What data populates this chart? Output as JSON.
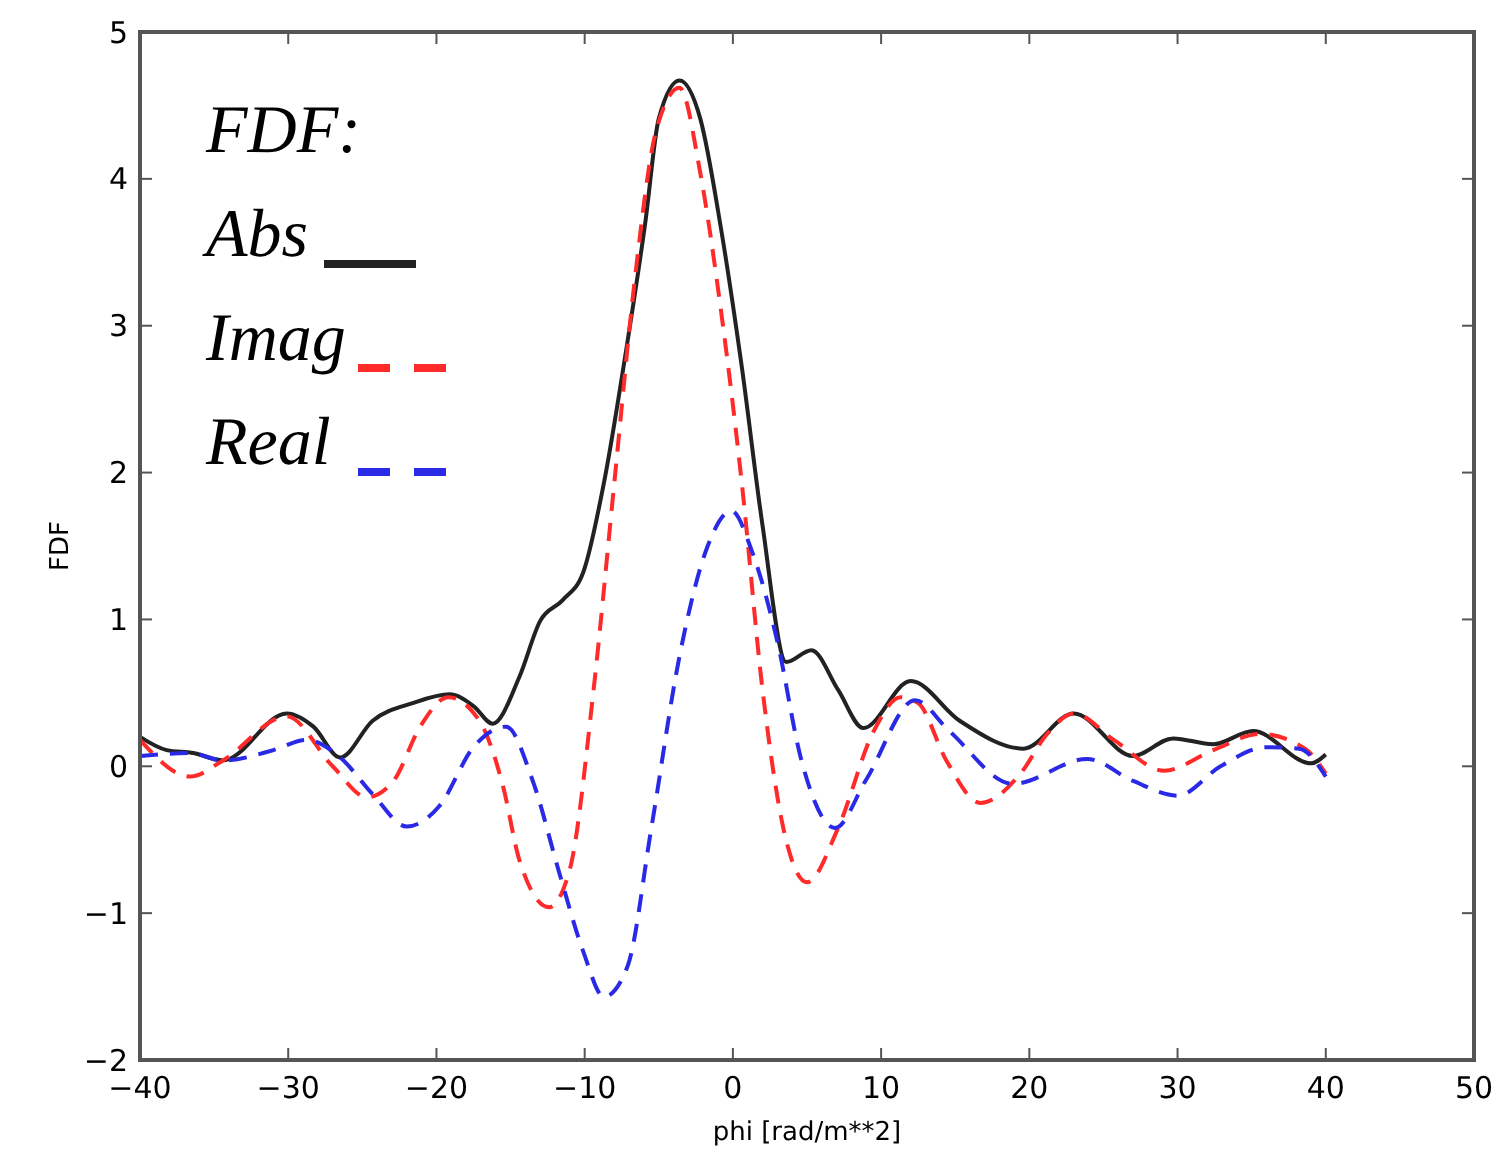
{
  "chart_data": {
    "type": "line",
    "xlabel": "phi [rad/m**2]",
    "ylabel": "FDF",
    "legend_title": "FDF:",
    "legend": "top left",
    "grid": false,
    "xlim": [
      -40,
      50
    ],
    "xticks": [
      -40,
      -30,
      -20,
      -10,
      0,
      10,
      20,
      30,
      40,
      50
    ],
    "ylim": [
      -2,
      5
    ],
    "yticks": [
      -2,
      -1,
      0,
      1,
      2,
      3,
      4,
      5
    ],
    "series": [
      {
        "name": "Abs",
        "color": "#222222",
        "line_style": "solid",
        "x": [
          -40,
          -38.2,
          -36.4,
          -34.4,
          -30.1,
          -28.3,
          -26.5,
          -24.3,
          -21.6,
          -19.1,
          -17.5,
          -16.2,
          -14.4,
          -13.0,
          -11.5,
          -10.1,
          -8.7,
          -7.3,
          -5.9,
          -5.0,
          -3.6,
          -2.2,
          -0.8,
          0.6,
          2.0,
          3.6,
          5.3,
          7.1,
          8.8,
          12.0,
          15.3,
          19.6,
          23.0,
          27.0,
          29.7,
          32.4,
          35.1,
          39.0,
          40
        ],
        "values": [
          0.2,
          0.11,
          0.09,
          0.04,
          0.36,
          0.27,
          0.06,
          0.31,
          0.43,
          0.49,
          0.41,
          0.29,
          0.61,
          0.99,
          1.13,
          1.32,
          1.93,
          2.77,
          3.71,
          4.41,
          4.67,
          4.41,
          3.66,
          2.72,
          1.64,
          0.71,
          0.79,
          0.52,
          0.26,
          0.58,
          0.31,
          0.12,
          0.36,
          0.07,
          0.19,
          0.15,
          0.24,
          0.02,
          0.08
        ]
      },
      {
        "name": "Imag",
        "color": "#ff2a2a",
        "line_style": "dashed",
        "x": [
          -40,
          -36.6,
          -34.4,
          -30.1,
          -27.0,
          -24.7,
          -22.9,
          -21.1,
          -19.2,
          -17.1,
          -15.5,
          -14.4,
          -12.4,
          -11.0,
          -9.4,
          -8.0,
          -6.6,
          -5.2,
          -3.6,
          -2.2,
          -0.8,
          0.6,
          2.0,
          3.4,
          5.0,
          7.1,
          9.5,
          11.3,
          12.5,
          14.4,
          16.7,
          19.4,
          21.2,
          23.0,
          25.7,
          29.1,
          32.4,
          35.6,
          38.6,
          40
        ],
        "values": [
          0.18,
          -0.07,
          0.04,
          0.34,
          0,
          -0.21,
          -0.1,
          0.27,
          0.47,
          0.31,
          -0.14,
          -0.64,
          -0.96,
          -0.7,
          0.52,
          1.93,
          3.33,
          4.32,
          4.62,
          4.04,
          3.1,
          1.93,
          0.52,
          -0.42,
          -0.79,
          -0.42,
          0.24,
          0.47,
          0.43,
          0.04,
          -0.25,
          -0.05,
          0.22,
          0.36,
          0.18,
          -0.03,
          0.11,
          0.22,
          0.12,
          -0.05
        ]
      },
      {
        "name": "Real",
        "color": "#2a2ae6",
        "line_style": "dashed",
        "x": [
          -40,
          -36.6,
          -34.4,
          -31.0,
          -28.8,
          -26.5,
          -24.3,
          -22.0,
          -19.8,
          -17.5,
          -15.3,
          -13.5,
          -11.7,
          -10.1,
          -8.7,
          -7.1,
          -5.5,
          -3.6,
          -1.7,
          -0.1,
          1.3,
          3.0,
          4.6,
          6.9,
          9.0,
          12.3,
          14.6,
          18.9,
          23.9,
          27.0,
          30.0,
          32.9,
          36.0,
          38.2,
          40
        ],
        "values": [
          0.07,
          0.09,
          0.04,
          0.11,
          0.18,
          0.06,
          -0.19,
          -0.41,
          -0.27,
          0.13,
          0.27,
          -0.1,
          -0.73,
          -1.26,
          -1.57,
          -1.36,
          -0.42,
          0.75,
          1.5,
          1.74,
          1.46,
          0.85,
          0.05,
          -0.42,
          -0.09,
          0.45,
          0.24,
          -0.12,
          0.05,
          -0.1,
          -0.2,
          0,
          0.13,
          0.12,
          -0.07
        ]
      }
    ]
  }
}
